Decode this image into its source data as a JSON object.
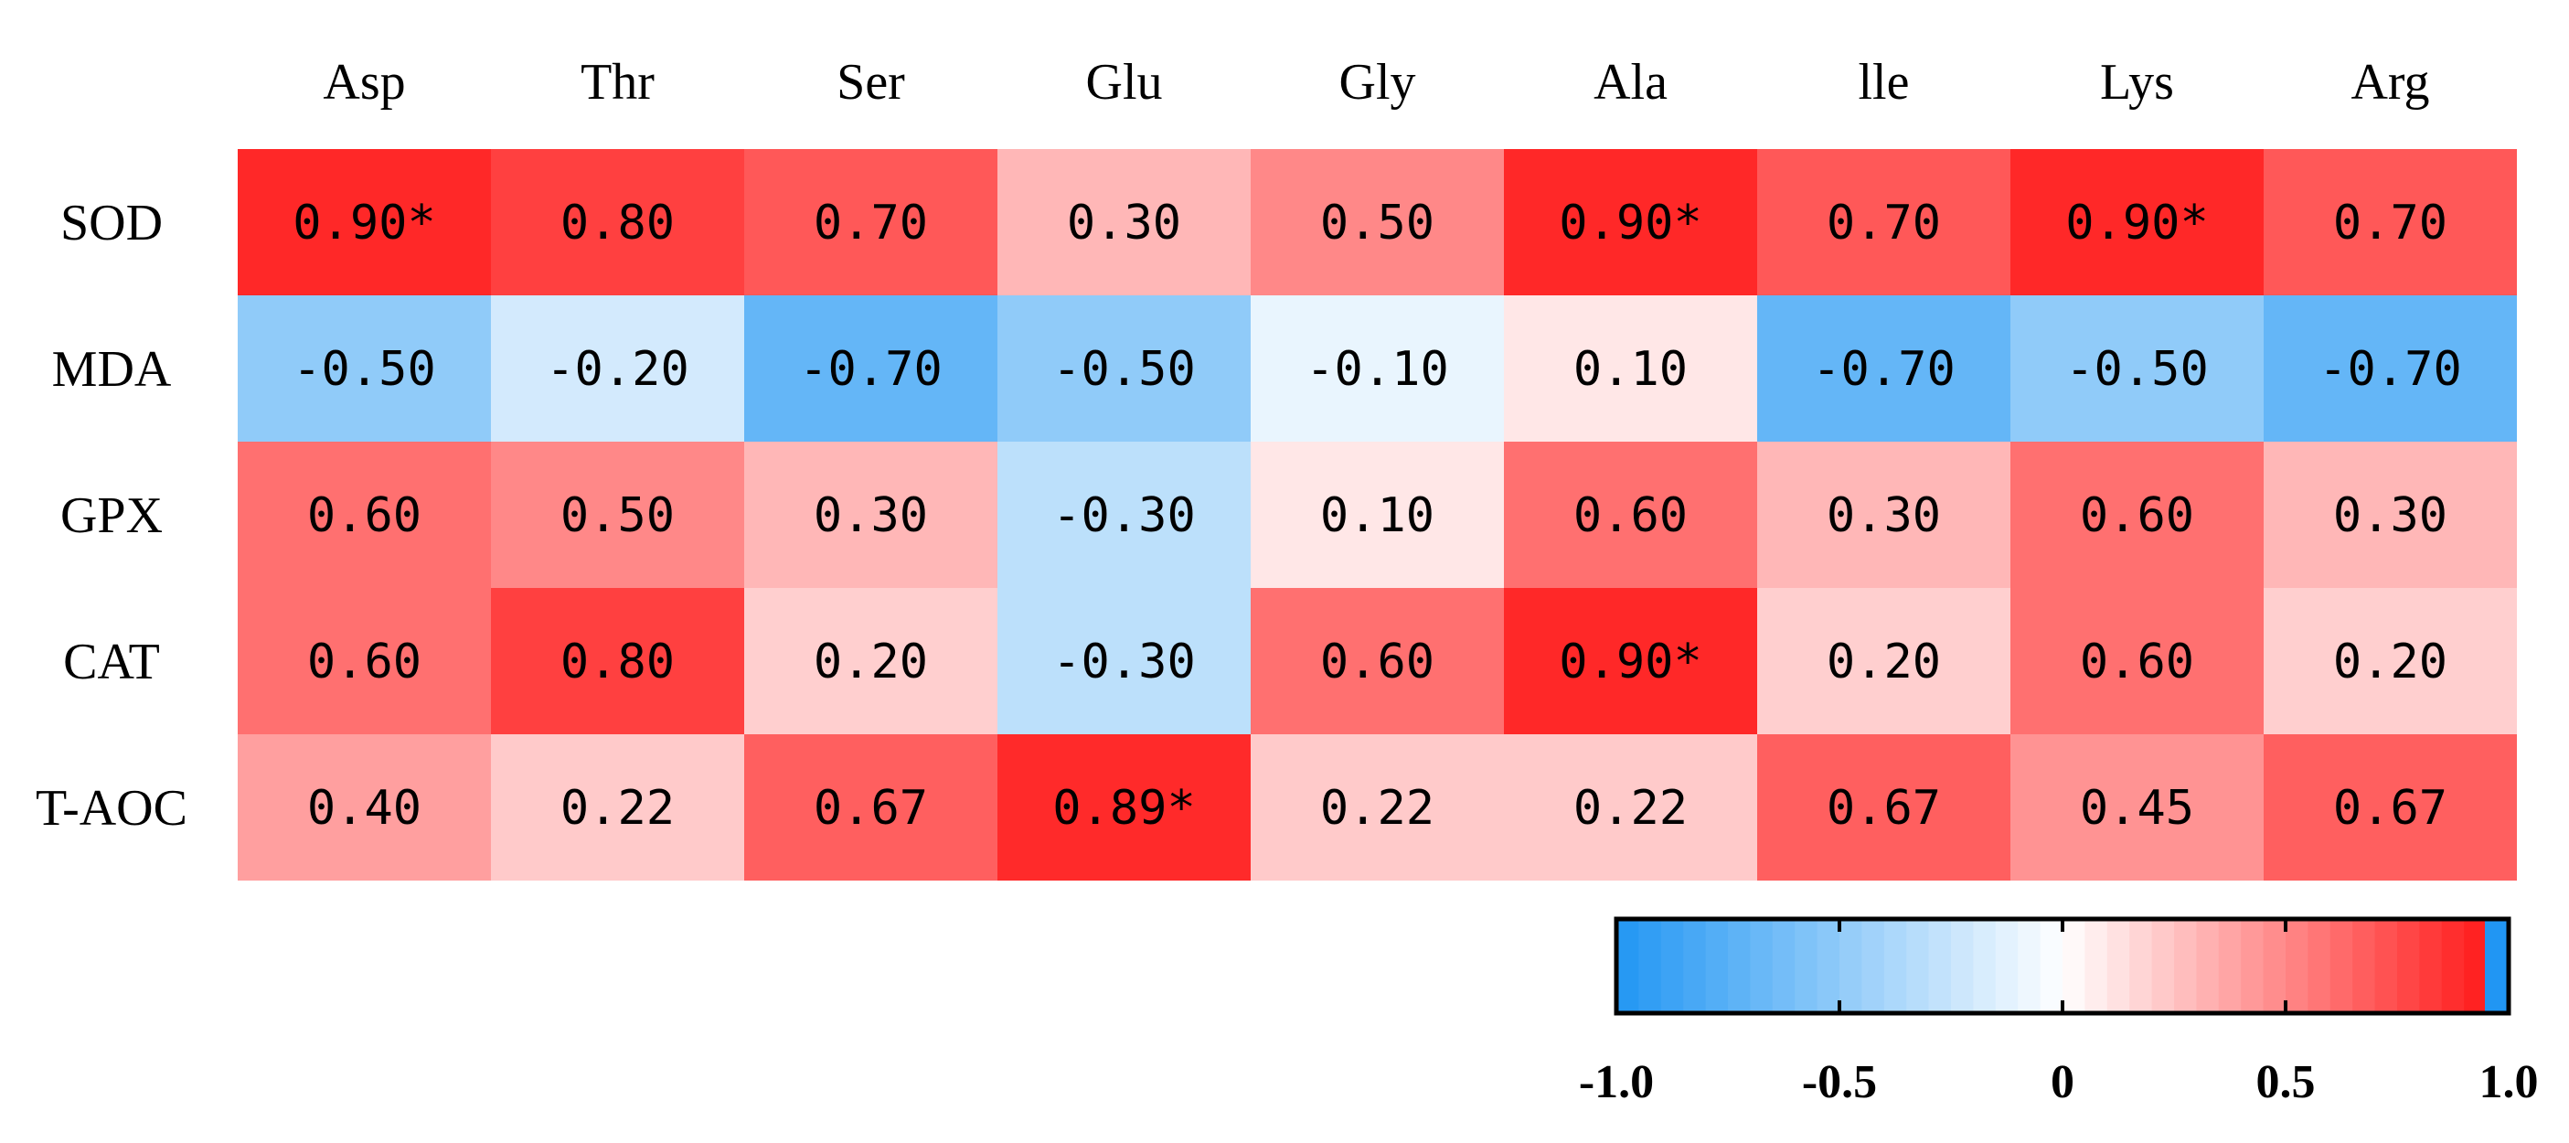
{
  "chart_data": {
    "type": "heatmap",
    "title": "",
    "columns": [
      "Asp",
      "Thr",
      "Ser",
      "Glu",
      "Gly",
      "Ala",
      "lle",
      "Lys",
      "Arg"
    ],
    "rows": [
      "SOD",
      "MDA",
      "GPX",
      "CAT",
      "T-AOC"
    ],
    "values": [
      [
        0.9,
        0.8,
        0.7,
        0.3,
        0.5,
        0.9,
        0.7,
        0.9,
        0.7
      ],
      [
        -0.5,
        -0.2,
        -0.7,
        -0.5,
        -0.1,
        0.1,
        -0.7,
        -0.5,
        -0.7
      ],
      [
        0.6,
        0.5,
        0.3,
        -0.3,
        0.1,
        0.6,
        0.3,
        0.6,
        0.3
      ],
      [
        0.6,
        0.8,
        0.2,
        -0.3,
        0.6,
        0.9,
        0.2,
        0.6,
        0.2
      ],
      [
        0.4,
        0.22,
        0.67,
        0.89,
        0.22,
        0.22,
        0.67,
        0.45,
        0.67
      ]
    ],
    "labels": [
      [
        "0.90*",
        "0.80",
        "0.70",
        "0.30",
        "0.50",
        "0.90*",
        "0.70",
        "0.90*",
        "0.70"
      ],
      [
        "-0.50",
        "-0.20",
        "-0.70",
        "-0.50",
        "-0.10",
        "0.10",
        "-0.70",
        "-0.50",
        "-0.70"
      ],
      [
        "0.60",
        "0.50",
        "0.30",
        "-0.30",
        "0.10",
        "0.60",
        "0.30",
        "0.60",
        "0.30"
      ],
      [
        "0.60",
        "0.80",
        "0.20",
        "-0.30",
        "0.60",
        "0.90*",
        "0.20",
        "0.60",
        "0.20"
      ],
      [
        "0.40",
        "0.22",
        "0.67",
        "0.89*",
        "0.22",
        "0.22",
        "0.67",
        "0.45",
        "0.67"
      ]
    ],
    "colorbar": {
      "range": [
        -1.0,
        1.0
      ],
      "tick_values": [
        -1.0,
        -0.5,
        0,
        0.5,
        1.0
      ],
      "tick_labels": [
        "-1.0",
        "-0.5",
        "0",
        "0.5",
        "1.0"
      ]
    },
    "colors": {
      "negative": "#2196f3",
      "neutral": "#ffffff",
      "positive": "#ff1010"
    }
  }
}
